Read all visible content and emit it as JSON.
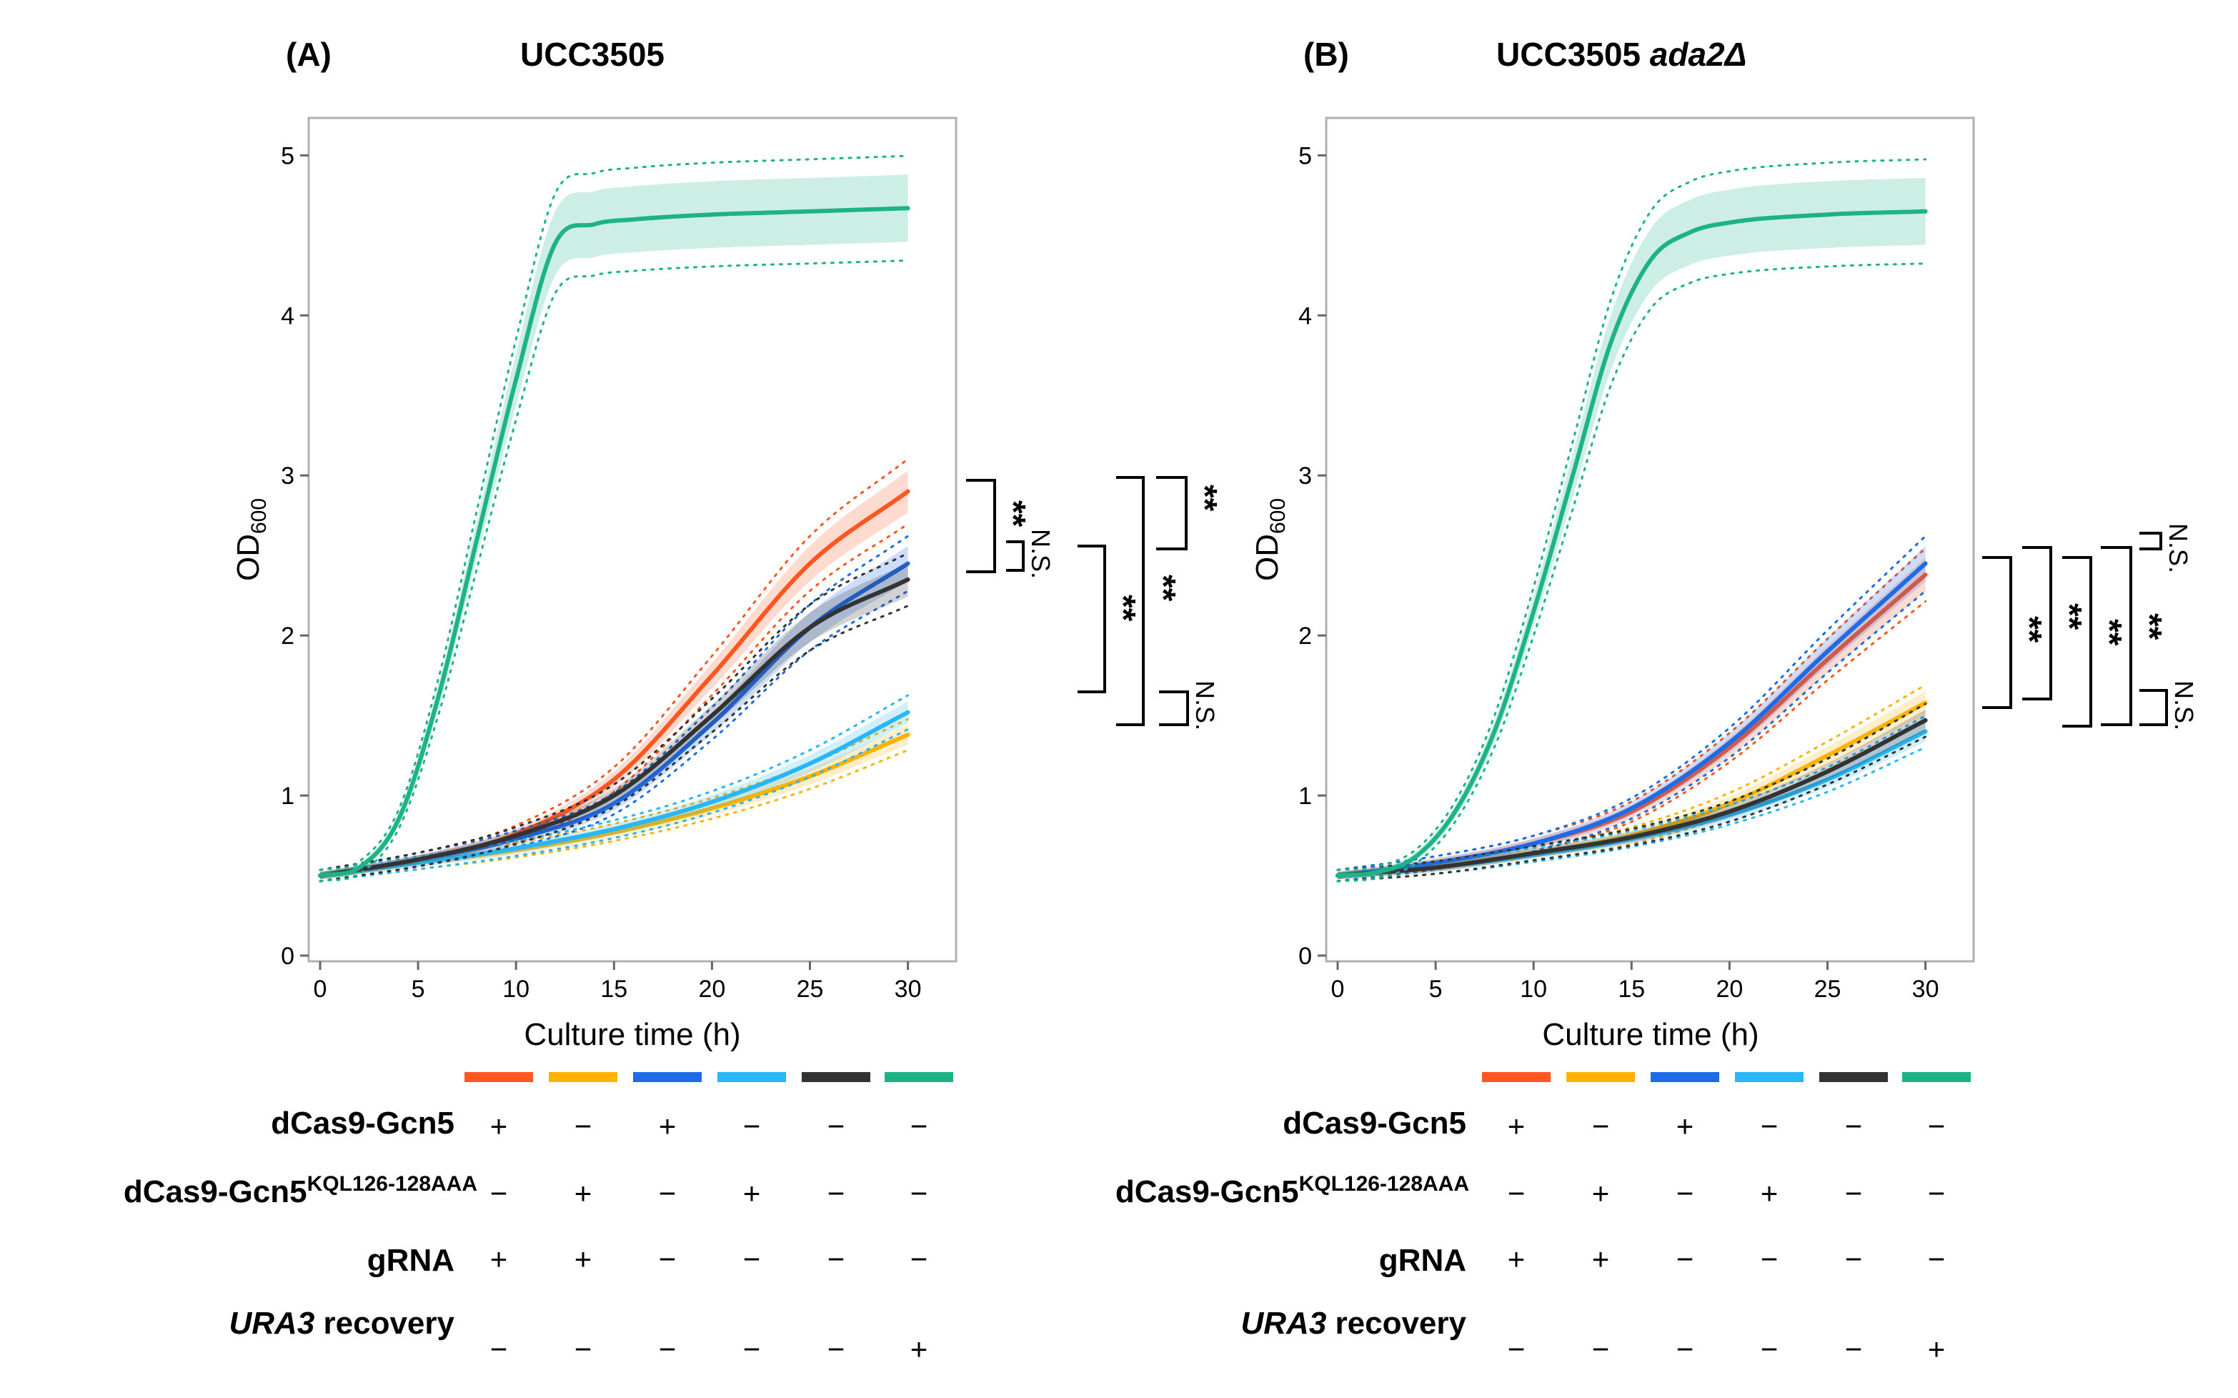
{
  "chart_data": [
    {
      "type": "line",
      "panel_letter": "(A)",
      "title": "UCC3505",
      "title_italic": "",
      "xlabel": "Culture time (h)",
      "ylabel_main": "OD",
      "ylabel_sub": "600",
      "xlim": [
        0,
        31
      ],
      "ylim": [
        0,
        5.1
      ],
      "xticks": [
        "0",
        "5",
        "10",
        "15",
        "20",
        "25",
        "30"
      ],
      "yticks": [
        "0",
        "1",
        "2",
        "3",
        "4",
        "5"
      ],
      "series": [
        {
          "name": "dCas9-Gcn5 + gRNA",
          "color": "#ff5722",
          "x": [
            0,
            5,
            10,
            15,
            20,
            25,
            30
          ],
          "values": [
            0.5,
            0.6,
            0.76,
            1.1,
            1.75,
            2.45,
            2.9
          ]
        },
        {
          "name": "dCas9-Gcn5 KQL126-128AAA + gRNA",
          "color": "#ffb300",
          "x": [
            0,
            5,
            10,
            15,
            20,
            25,
            30
          ],
          "values": [
            0.5,
            0.58,
            0.66,
            0.77,
            0.92,
            1.12,
            1.38
          ]
        },
        {
          "name": "dCas9-Gcn5, no gRNA",
          "color": "#1e6be6",
          "x": [
            0,
            5,
            10,
            15,
            20,
            25,
            30
          ],
          "values": [
            0.5,
            0.6,
            0.73,
            0.95,
            1.45,
            2.05,
            2.45
          ]
        },
        {
          "name": "dCas9-Gcn5 KQL126-128AAA, no gRNA",
          "color": "#29b6f6",
          "x": [
            0,
            5,
            10,
            15,
            20,
            25,
            30
          ],
          "values": [
            0.5,
            0.58,
            0.67,
            0.79,
            0.96,
            1.2,
            1.52
          ]
        },
        {
          "name": "no dCas9, no gRNA",
          "color": "#333333",
          "x": [
            0,
            5,
            10,
            15,
            20,
            25,
            30
          ],
          "values": [
            0.5,
            0.6,
            0.75,
            1.0,
            1.5,
            2.05,
            2.35
          ]
        },
        {
          "name": "URA3 recovery",
          "color": "#1db386",
          "x": [
            0,
            2,
            4,
            6,
            8,
            10,
            12,
            14,
            16,
            20,
            25,
            30
          ],
          "values": [
            0.5,
            0.55,
            0.85,
            1.6,
            2.6,
            3.6,
            4.45,
            4.57,
            4.6,
            4.63,
            4.65,
            4.67
          ]
        }
      ],
      "significance": [
        {
          "label": "**",
          "pair": "orange vs blue"
        },
        {
          "label": "N.S.",
          "pair": "blue vs black"
        },
        {
          "label": "**",
          "pair": "orange vs black"
        },
        {
          "label": "**",
          "pair": "blue vs light blue"
        },
        {
          "label": "N.S.",
          "pair": "light blue vs yellow"
        }
      ]
    },
    {
      "type": "line",
      "panel_letter": "(B)",
      "title": "UCC3505 ",
      "title_italic": "ada2Δ",
      "xlabel": "Culture time (h)",
      "ylabel_main": "OD",
      "ylabel_sub": "600",
      "xlim": [
        0,
        31
      ],
      "ylim": [
        0,
        5.1
      ],
      "xticks": [
        "0",
        "5",
        "10",
        "15",
        "20",
        "25",
        "30"
      ],
      "yticks": [
        "0",
        "1",
        "2",
        "3",
        "4",
        "5"
      ],
      "series": [
        {
          "name": "dCas9-Gcn5 + gRNA",
          "color": "#ff5722",
          "x": [
            0,
            5,
            10,
            15,
            20,
            25,
            30
          ],
          "values": [
            0.5,
            0.58,
            0.7,
            0.9,
            1.3,
            1.85,
            2.38
          ]
        },
        {
          "name": "dCas9-Gcn5 KQL126-128AAA + gRNA",
          "color": "#ffb300",
          "x": [
            0,
            5,
            10,
            15,
            20,
            25,
            30
          ],
          "values": [
            0.5,
            0.55,
            0.64,
            0.75,
            0.95,
            1.25,
            1.58
          ]
        },
        {
          "name": "dCas9-Gcn5, no gRNA",
          "color": "#1e6be6",
          "x": [
            0,
            5,
            10,
            15,
            20,
            25,
            30
          ],
          "values": [
            0.5,
            0.58,
            0.7,
            0.92,
            1.33,
            1.9,
            2.45
          ]
        },
        {
          "name": "dCas9-Gcn5 KQL126-128AAA, no gRNA",
          "color": "#29b6f6",
          "x": [
            0,
            5,
            10,
            15,
            20,
            25,
            30
          ],
          "values": [
            0.5,
            0.55,
            0.63,
            0.73,
            0.88,
            1.1,
            1.4
          ]
        },
        {
          "name": "no dCas9, no gRNA",
          "color": "#333333",
          "x": [
            0,
            5,
            10,
            15,
            20,
            25,
            30
          ],
          "values": [
            0.5,
            0.55,
            0.64,
            0.74,
            0.9,
            1.15,
            1.47
          ]
        },
        {
          "name": "URA3 recovery",
          "color": "#1db386",
          "x": [
            0,
            2,
            4,
            6,
            8,
            10,
            12,
            14,
            16,
            18,
            20,
            25,
            30
          ],
          "values": [
            0.5,
            0.52,
            0.62,
            0.9,
            1.4,
            2.15,
            3.0,
            3.85,
            4.35,
            4.52,
            4.58,
            4.63,
            4.65
          ]
        }
      ],
      "significance": [
        {
          "label": "N.S.",
          "pair": "orange vs blue"
        },
        {
          "label": "**",
          "pair": "blue vs yellow"
        },
        {
          "label": "**",
          "pair": "blue vs black"
        },
        {
          "label": "**",
          "pair": "orange vs yellow"
        },
        {
          "label": "**",
          "pair": "orange vs black"
        },
        {
          "label": "N.S.",
          "pair": "yellow vs black"
        }
      ]
    }
  ],
  "legend": {
    "colors": [
      "#ff5722",
      "#ffb300",
      "#1e6be6",
      "#29b6f6",
      "#333333",
      "#1db386"
    ],
    "rows": [
      {
        "label_main": "dCas9-Gcn5",
        "label_sup": "",
        "label_italic": "",
        "label_rest": "",
        "signs": [
          "+",
          "−",
          "+",
          "−",
          "−",
          "−"
        ]
      },
      {
        "label_main": "dCas9-Gcn5",
        "label_sup": "KQL126-128AAA",
        "label_italic": "",
        "label_rest": "",
        "signs": [
          "−",
          "+",
          "−",
          "+",
          "−",
          "−"
        ]
      },
      {
        "label_main": "gRNA",
        "label_sup": "",
        "label_italic": "",
        "label_rest": "",
        "signs": [
          "+",
          "+",
          "−",
          "−",
          "−",
          "−"
        ]
      },
      {
        "label_main": "",
        "label_sup": "",
        "label_italic": "URA3",
        "label_rest": " recovery",
        "signs": [
          "−",
          "−",
          "−",
          "−",
          "−",
          "+"
        ]
      }
    ]
  }
}
